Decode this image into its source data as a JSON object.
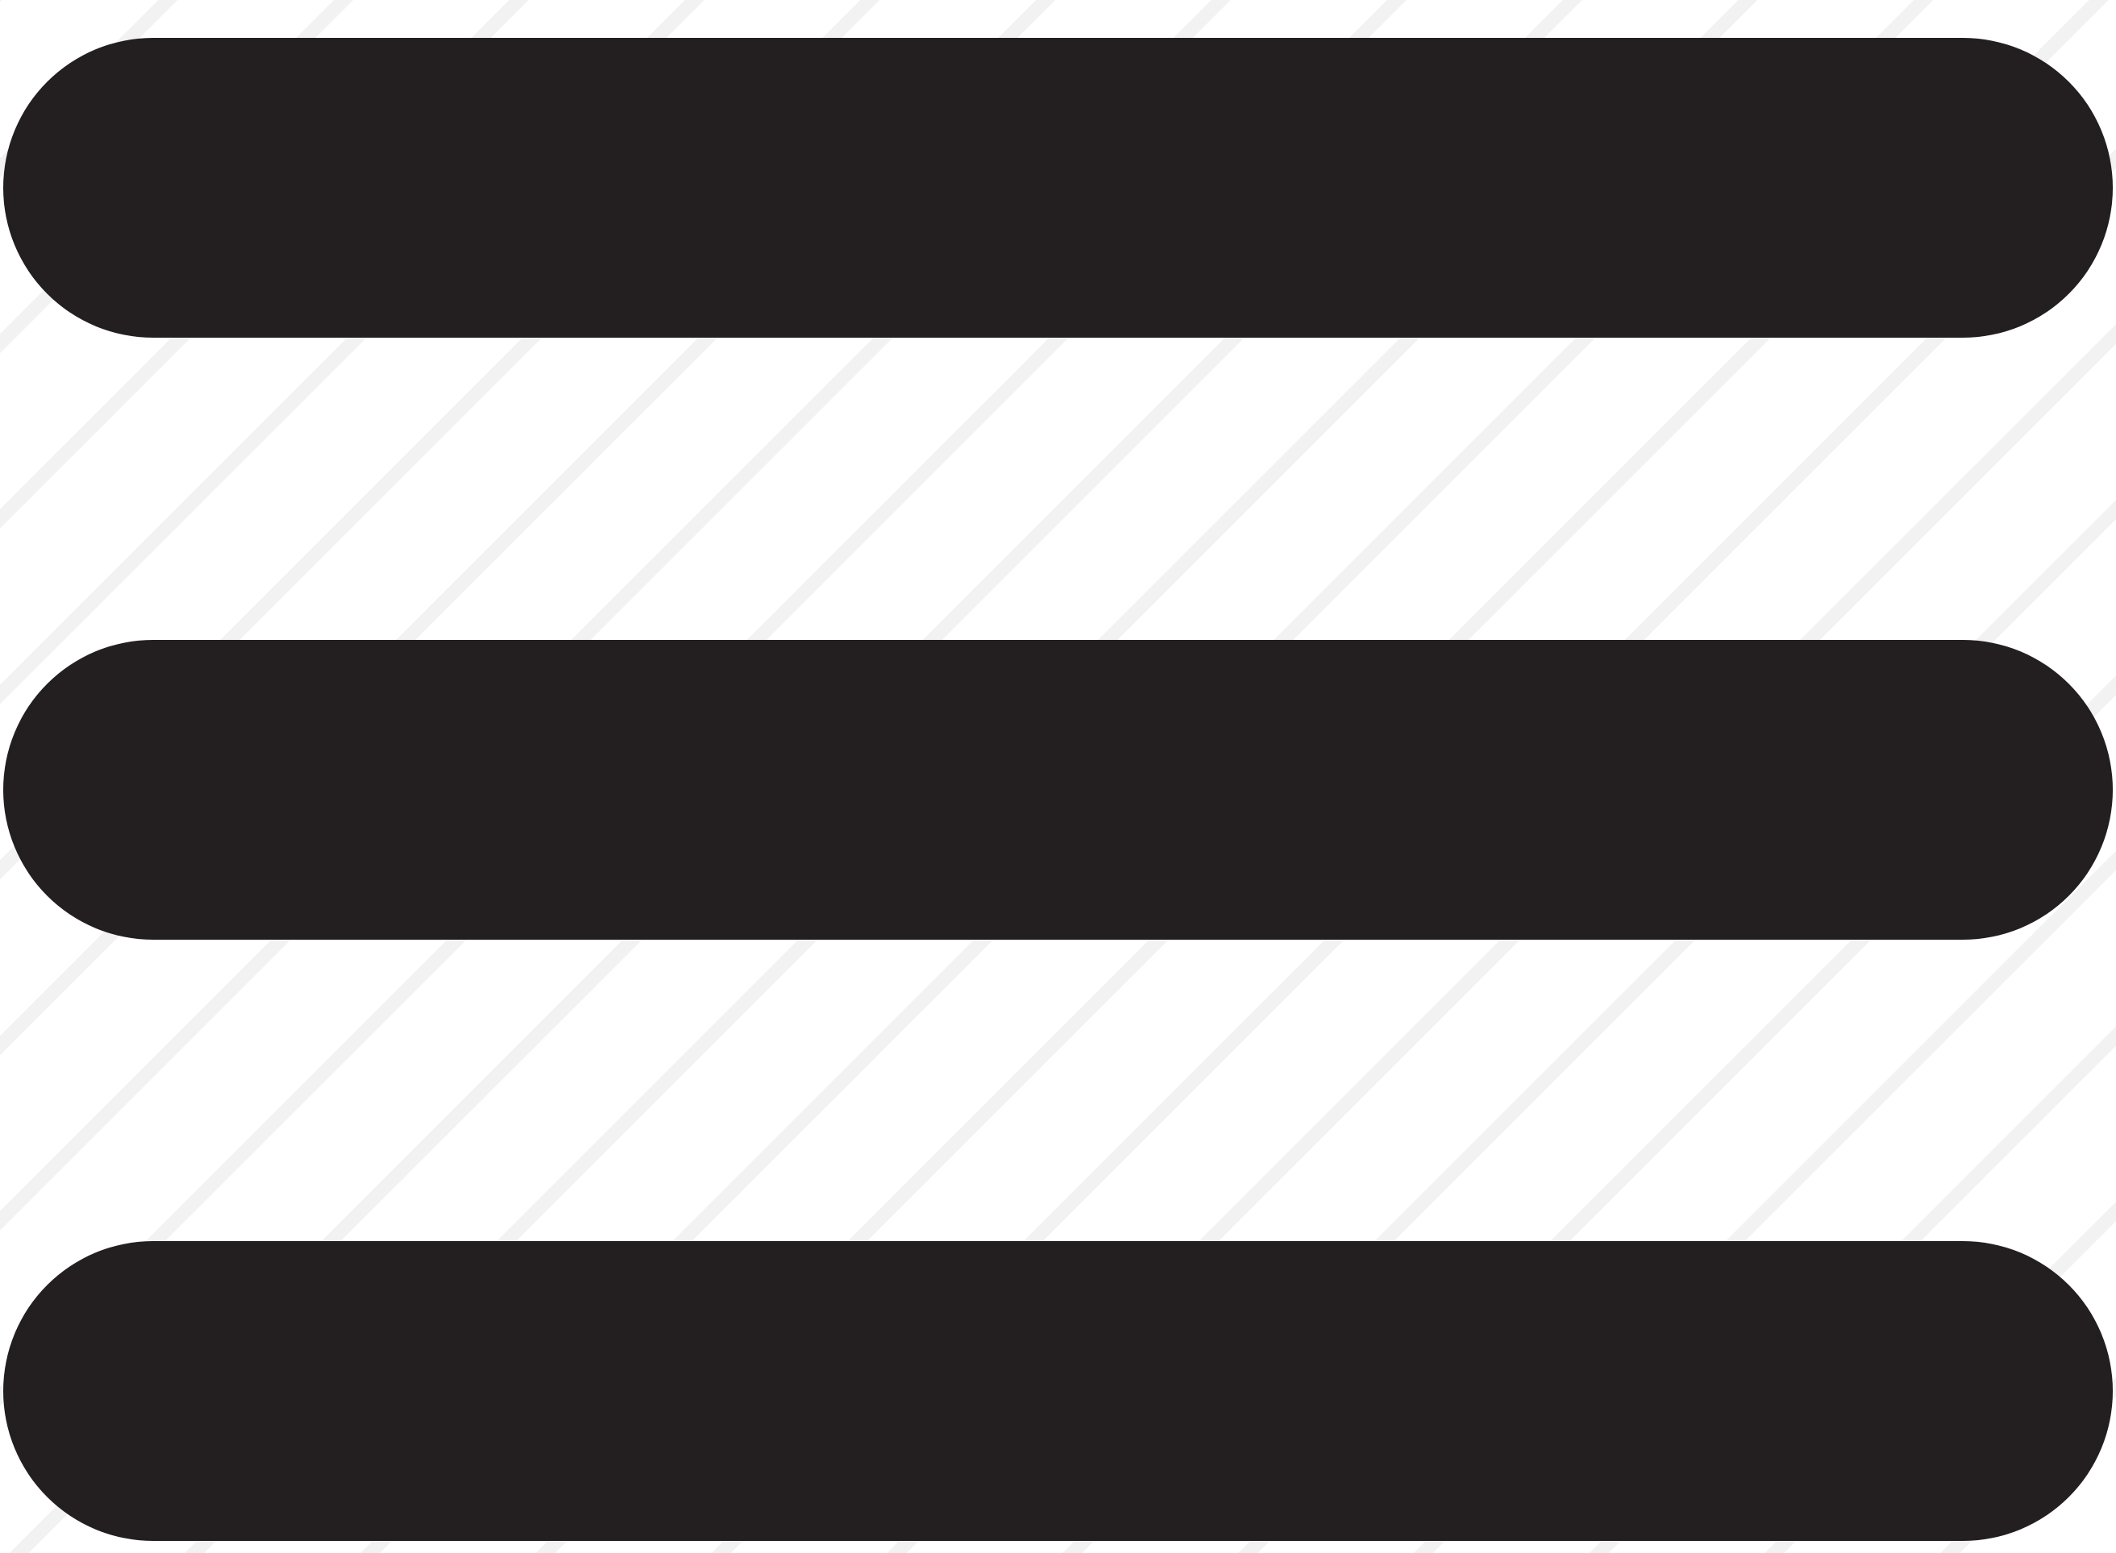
{
  "icon": {
    "name": "hamburger-menu-icon",
    "bar_count": 3,
    "bar_color": "#231f20",
    "background_color": "#ffffff",
    "hatch_color": "#f2f2f2"
  }
}
